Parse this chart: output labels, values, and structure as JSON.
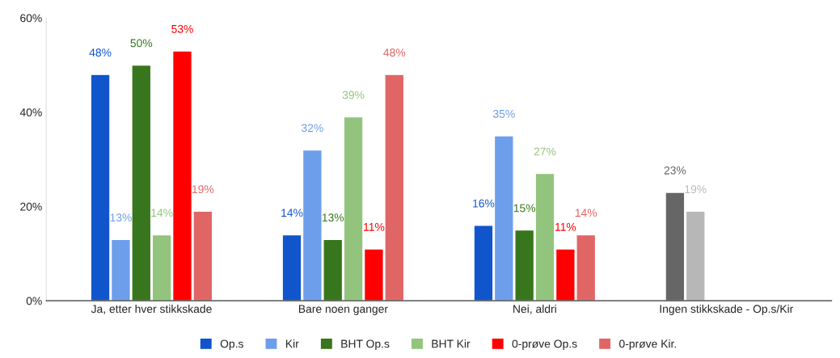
{
  "chart_data": {
    "type": "bar",
    "categories": [
      "Ja, etter hver stikkskade",
      "Bare noen ganger",
      "Nei, aldri",
      "Ingen stikkskade - Op.s/Kir"
    ],
    "series": [
      {
        "name": "Op.s",
        "color": "#1155cc",
        "colors": [
          "#1155cc",
          "#1155cc",
          "#1155cc",
          "#666666"
        ],
        "values": [
          48,
          14,
          16,
          23
        ],
        "value_labels": [
          "48%",
          "14%",
          "16%",
          "23%"
        ]
      },
      {
        "name": "Kir",
        "color": "#6d9eeb",
        "colors": [
          "#6d9eeb",
          "#6d9eeb",
          "#6d9eeb",
          "#b7b7b7"
        ],
        "values": [
          13,
          32,
          35,
          19
        ],
        "value_labels": [
          "13%",
          "32%",
          "35%",
          "19%"
        ]
      },
      {
        "name": "BHT Op.s",
        "color": "#38761d",
        "values": [
          50,
          13,
          15,
          null
        ],
        "value_labels": [
          "50%",
          "13%",
          "15%",
          null
        ]
      },
      {
        "name": "BHT Kir",
        "color": "#93c47d",
        "values": [
          14,
          39,
          27,
          null
        ],
        "value_labels": [
          "14%",
          "39%",
          "27%",
          null
        ]
      },
      {
        "name": "0-prøve Op.s",
        "color": "#ff0000",
        "values": [
          53,
          11,
          11,
          null
        ],
        "value_labels": [
          "53%",
          "11%",
          "11%",
          null
        ]
      },
      {
        "name": "0-prøve Kir.",
        "color": "#e06666",
        "values": [
          19,
          48,
          14,
          null
        ],
        "value_labels": [
          "19%",
          "48%",
          "14%",
          null
        ]
      }
    ],
    "ylim": [
      0,
      60
    ],
    "yticks": [
      {
        "value": 0,
        "label": "0%"
      },
      {
        "value": 20,
        "label": "20%"
      },
      {
        "value": 40,
        "label": "40%"
      },
      {
        "value": 60,
        "label": "60%"
      }
    ],
    "grid": false,
    "legend": "bottom"
  }
}
